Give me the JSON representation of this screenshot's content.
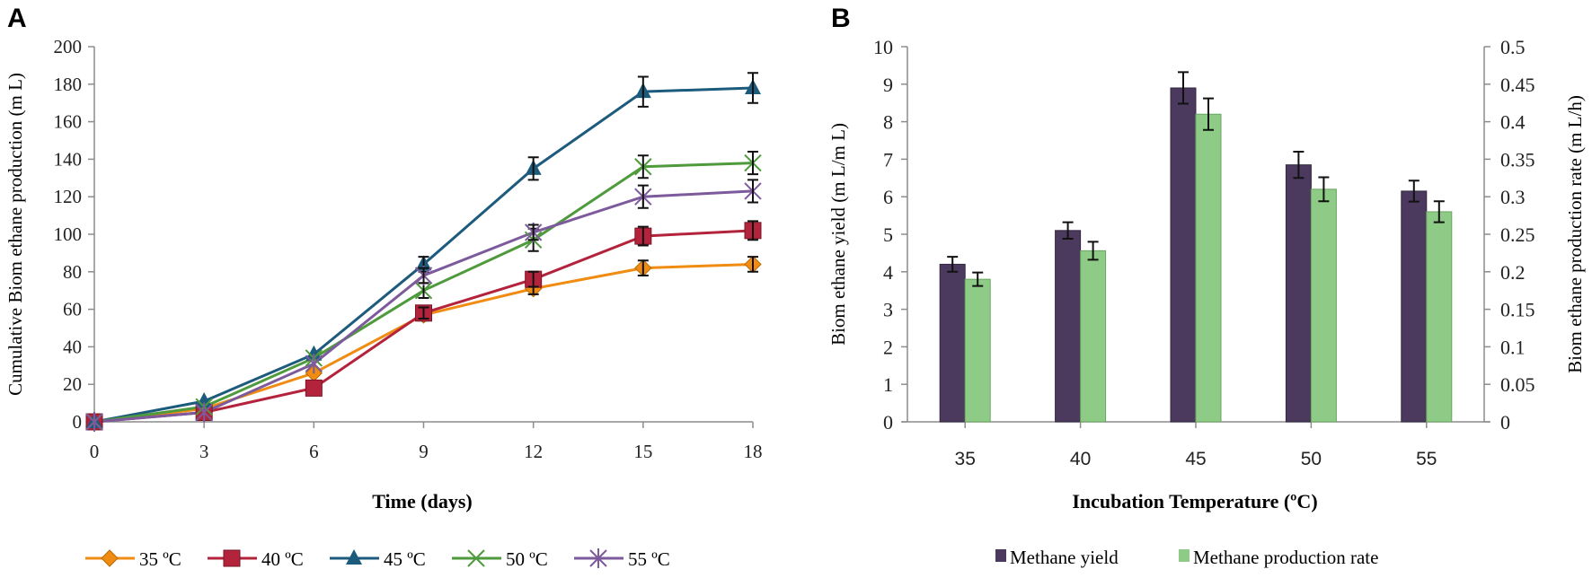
{
  "chart_data": [
    {
      "panel_label": "A",
      "type": "line",
      "title": "",
      "xlabel": "Time (days)",
      "ylabel": "Cumulative Biom ethane production (m L)",
      "x": [
        0,
        3,
        6,
        9,
        12,
        15,
        18
      ],
      "xticks": [
        "0",
        "3",
        "6",
        "9",
        "12",
        "15",
        "18"
      ],
      "yticks": [
        "0",
        "20",
        "40",
        "60",
        "80",
        "100",
        "120",
        "140",
        "160",
        "180",
        "200"
      ],
      "xlim": [
        0,
        18
      ],
      "ylim": [
        0,
        200
      ],
      "grid": false,
      "legend_position": "bottom",
      "series": [
        {
          "name": "35 ºC",
          "marker": "diamond",
          "color": "#F08C12",
          "values": [
            0,
            7,
            26,
            57,
            71,
            82,
            84
          ],
          "errors": [
            0,
            1,
            2,
            3,
            3,
            4,
            4
          ]
        },
        {
          "name": "40 ºC",
          "marker": "square",
          "color": "#B3243C",
          "values": [
            0,
            5,
            18,
            58,
            76,
            99,
            102
          ],
          "errors": [
            0,
            1,
            2,
            3,
            4,
            5,
            5
          ]
        },
        {
          "name": "45 ºC",
          "marker": "triangle",
          "color": "#1D5B7C",
          "values": [
            0,
            11,
            36,
            84,
            135,
            176,
            178
          ],
          "errors": [
            0,
            1,
            2,
            4,
            6,
            8,
            8
          ]
        },
        {
          "name": "50 ºC",
          "marker": "x",
          "color": "#4E9A3C",
          "values": [
            0,
            8,
            34,
            70,
            97,
            136,
            138
          ],
          "errors": [
            0,
            1,
            2,
            4,
            6,
            6,
            6
          ]
        },
        {
          "name": "55 ºC",
          "marker": "star",
          "color": "#7C5A9C",
          "values": [
            0,
            5,
            31,
            78,
            101,
            120,
            123
          ],
          "errors": [
            0,
            1,
            2,
            4,
            4,
            6,
            6
          ]
        }
      ]
    },
    {
      "panel_label": "B",
      "type": "bar",
      "title": "",
      "xlabel": "Incubation Temperature (ºC)",
      "ylabel": "Biom ethane yield (m L/m L)",
      "y2label": "Biom ethane production rate (m L/h)",
      "categories": [
        "35",
        "40",
        "45",
        "50",
        "55"
      ],
      "yticks": [
        "0",
        "1",
        "2",
        "3",
        "4",
        "5",
        "6",
        "7",
        "8",
        "9",
        "10"
      ],
      "y2ticks": [
        "0",
        "0.05",
        "0.1",
        "0.15",
        "0.2",
        "0.25",
        "0.3",
        "0.35",
        "0.4",
        "0.45",
        "0.5"
      ],
      "ylim": [
        0,
        10
      ],
      "y2lim": [
        0,
        0.5
      ],
      "grid": false,
      "legend_position": "bottom",
      "series": [
        {
          "name": "Methane yield",
          "axis": "left",
          "color": "#4B3A5E",
          "values": [
            4.2,
            5.1,
            8.9,
            6.85,
            6.15
          ],
          "errors": [
            0.2,
            0.22,
            0.42,
            0.35,
            0.28
          ]
        },
        {
          "name": "Methane production rate",
          "axis": "right",
          "color": "#8ECB86",
          "values": [
            0.19,
            0.228,
            0.41,
            0.31,
            0.28
          ],
          "errors": [
            0.009,
            0.012,
            0.021,
            0.016,
            0.014
          ]
        }
      ]
    }
  ]
}
